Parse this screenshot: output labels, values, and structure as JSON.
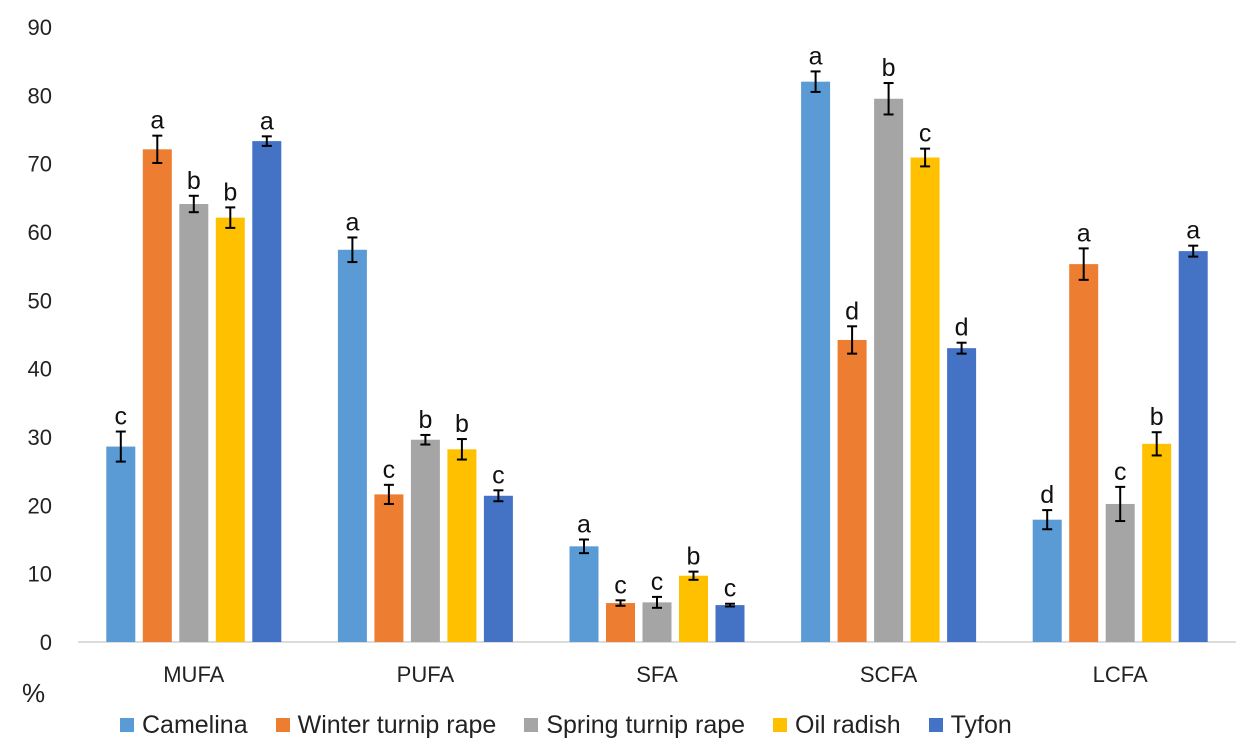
{
  "chart_data": {
    "type": "bar",
    "categories": [
      "MUFA",
      "PUFA",
      "SFA",
      "SCFA",
      "LCFA"
    ],
    "series": [
      {
        "name": "Camelina",
        "color": "#5B9BD5",
        "values": [
          28.6,
          57.4,
          14.0,
          82.0,
          17.9
        ],
        "errors": [
          2.2,
          1.8,
          1.0,
          1.5,
          1.4
        ],
        "letters": [
          "c",
          "a",
          "a",
          "a",
          "d"
        ]
      },
      {
        "name": "Winter turnip rape",
        "color": "#ED7D31",
        "values": [
          72.1,
          21.6,
          5.7,
          44.2,
          55.3
        ],
        "errors": [
          2.0,
          1.4,
          0.4,
          2.0,
          2.3
        ],
        "letters": [
          "a",
          "c",
          "c",
          "d",
          "a"
        ]
      },
      {
        "name": "Spring turnip rape",
        "color": "#A5A5A5",
        "values": [
          64.1,
          29.6,
          5.8,
          79.5,
          20.2
        ],
        "errors": [
          1.2,
          0.7,
          0.8,
          2.3,
          2.5
        ],
        "letters": [
          "b",
          "b",
          "c",
          "b",
          "c"
        ]
      },
      {
        "name": "Oil radish",
        "color": "#FFC000",
        "values": [
          62.1,
          28.2,
          9.7,
          70.9,
          29.0
        ],
        "errors": [
          1.5,
          1.5,
          0.6,
          1.3,
          1.7
        ],
        "letters": [
          "b",
          "b",
          "b",
          "c",
          "b"
        ]
      },
      {
        "name": "Tyfon",
        "color": "#4472C4",
        "values": [
          73.3,
          21.4,
          5.4,
          43.0,
          57.2
        ],
        "errors": [
          0.7,
          0.8,
          0.2,
          0.8,
          0.8
        ],
        "letters": [
          "a",
          "c",
          "c",
          "d",
          "a"
        ]
      }
    ],
    "ylabel": "%",
    "ylim": [
      0,
      90
    ],
    "yticks": [
      0,
      10,
      20,
      30,
      40,
      50,
      60,
      70,
      80,
      90
    ],
    "grid": false,
    "legend": "bottom"
  }
}
